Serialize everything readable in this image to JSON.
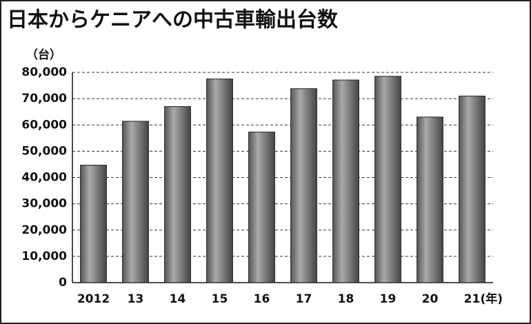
{
  "chart_data": {
    "type": "bar",
    "title": "日本からケニアへの中古車輸出台数",
    "y_unit": "（台）",
    "x_unit": "(年)",
    "categories": [
      "2012",
      "13",
      "14",
      "15",
      "16",
      "17",
      "18",
      "19",
      "20",
      "21"
    ],
    "values": [
      44700,
      61400,
      67000,
      77500,
      57300,
      73800,
      77100,
      78500,
      63000,
      71000
    ],
    "color": "#777777",
    "ylim": [
      0,
      80000
    ],
    "yticks": [
      0,
      {
        "value": 10000,
        "label": "10,000"
      },
      {
        "value": 20000,
        "label": "20,000"
      },
      {
        "value": 30000,
        "label": "30,000"
      },
      {
        "value": 40000,
        "label": "40,000"
      },
      {
        "value": 50000,
        "label": "50,000"
      },
      {
        "value": 60000,
        "label": "60,000"
      },
      {
        "value": 70000,
        "label": "70,000"
      },
      {
        "value": 80000,
        "label": "80,000"
      }
    ],
    "grid": true
  }
}
